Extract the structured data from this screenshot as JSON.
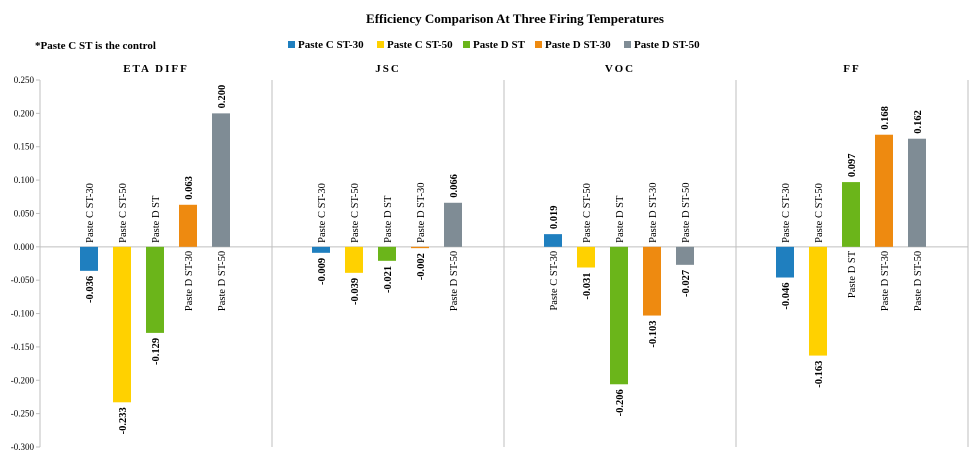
{
  "chart_data": {
    "type": "bar",
    "title": "Efficiency Comparison At Three Firing Temperatures",
    "note": "*Paste C ST is the control",
    "ylim": [
      -0.3,
      0.25
    ],
    "yticks": [
      "0.250",
      "0.200",
      "0.150",
      "0.100",
      "0.050",
      "0.000",
      "-0.050",
      "-0.100",
      "-0.150",
      "-0.200",
      "-0.250",
      "-0.300"
    ],
    "ytick_values": [
      0.25,
      0.2,
      0.15,
      0.1,
      0.05,
      0.0,
      -0.05,
      -0.1,
      -0.15,
      -0.2,
      -0.25,
      -0.3
    ],
    "grid": false,
    "legend_position": "top",
    "categories": [
      "Paste C ST-30",
      "Paste C ST-50",
      "Paste D ST",
      "Paste D ST-30",
      "Paste D ST-50"
    ],
    "colors": [
      "#1F7FBF",
      "#FFD100",
      "#6BB51A",
      "#EE8A10",
      "#7F8C95"
    ],
    "panels": [
      {
        "title": "ETA DIFF",
        "values": [
          -0.036,
          -0.233,
          -0.129,
          0.063,
          0.2
        ],
        "labels": [
          "-0.036",
          "-0.233",
          "-0.129",
          "0.063",
          "0.200"
        ]
      },
      {
        "title": "JSC",
        "values": [
          -0.009,
          -0.039,
          -0.021,
          -0.002,
          0.066
        ],
        "labels": [
          "-0.009",
          "-0.039",
          "-0.021",
          "-0.002",
          "0.066"
        ]
      },
      {
        "title": "VOC",
        "values": [
          0.019,
          -0.031,
          -0.206,
          -0.103,
          -0.027
        ],
        "labels": [
          "0.019",
          "-0.031",
          "-0.206",
          "-0.103",
          "-0.027"
        ]
      },
      {
        "title": "FF",
        "values": [
          -0.046,
          -0.163,
          0.097,
          0.168,
          0.162
        ],
        "labels": [
          "-0.046",
          "-0.163",
          "0.097",
          "0.168",
          "0.162"
        ]
      }
    ]
  }
}
